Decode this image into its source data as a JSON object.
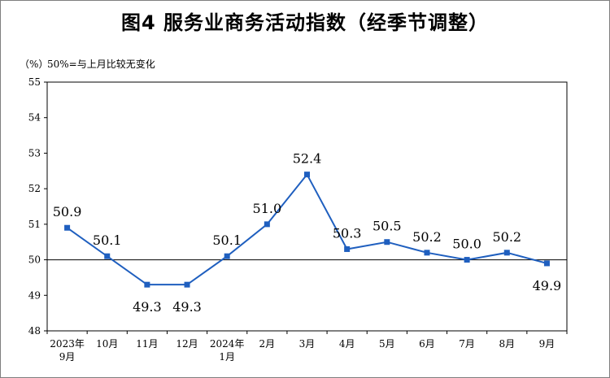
{
  "title": "图4  服务业商务活动指数（经季节调整）",
  "unit_label": "（%）",
  "note": "50%=与上月比较无变化",
  "colors": {
    "series": "#1f5fbf",
    "axis": "#000000",
    "reference": "#000000"
  },
  "chart_data": {
    "type": "line",
    "title": "图4  服务业商务活动指数（经季节调整）",
    "xlabel": "",
    "ylabel": "（%）",
    "ylim": [
      48,
      55
    ],
    "yticks": [
      48,
      49,
      50,
      51,
      52,
      53,
      54,
      55
    ],
    "reference_line": 50,
    "grid": false,
    "legend": "none",
    "categories": [
      [
        "2023年",
        "9月"
      ],
      [
        "10月"
      ],
      [
        "11月"
      ],
      [
        "12月"
      ],
      [
        "2024年",
        "1月"
      ],
      [
        "2月"
      ],
      [
        "3月"
      ],
      [
        "4月"
      ],
      [
        "5月"
      ],
      [
        "6月"
      ],
      [
        "7月"
      ],
      [
        "8月"
      ],
      [
        "9月"
      ]
    ],
    "series": [
      {
        "values": [
          50.9,
          50.1,
          49.3,
          49.3,
          50.1,
          51.0,
          52.4,
          50.3,
          50.5,
          50.2,
          50.0,
          50.2,
          49.9
        ],
        "labels": [
          "50.9",
          "50.1",
          "49.3",
          "49.3",
          "50.1",
          "51.0",
          "52.4",
          "50.3",
          "50.5",
          "50.2",
          "50.0",
          "50.2",
          "49.9"
        ],
        "label_positions": [
          "above",
          "above",
          "below",
          "below",
          "above",
          "above",
          "above",
          "above",
          "above",
          "above",
          "above",
          "above",
          "below"
        ]
      }
    ]
  }
}
